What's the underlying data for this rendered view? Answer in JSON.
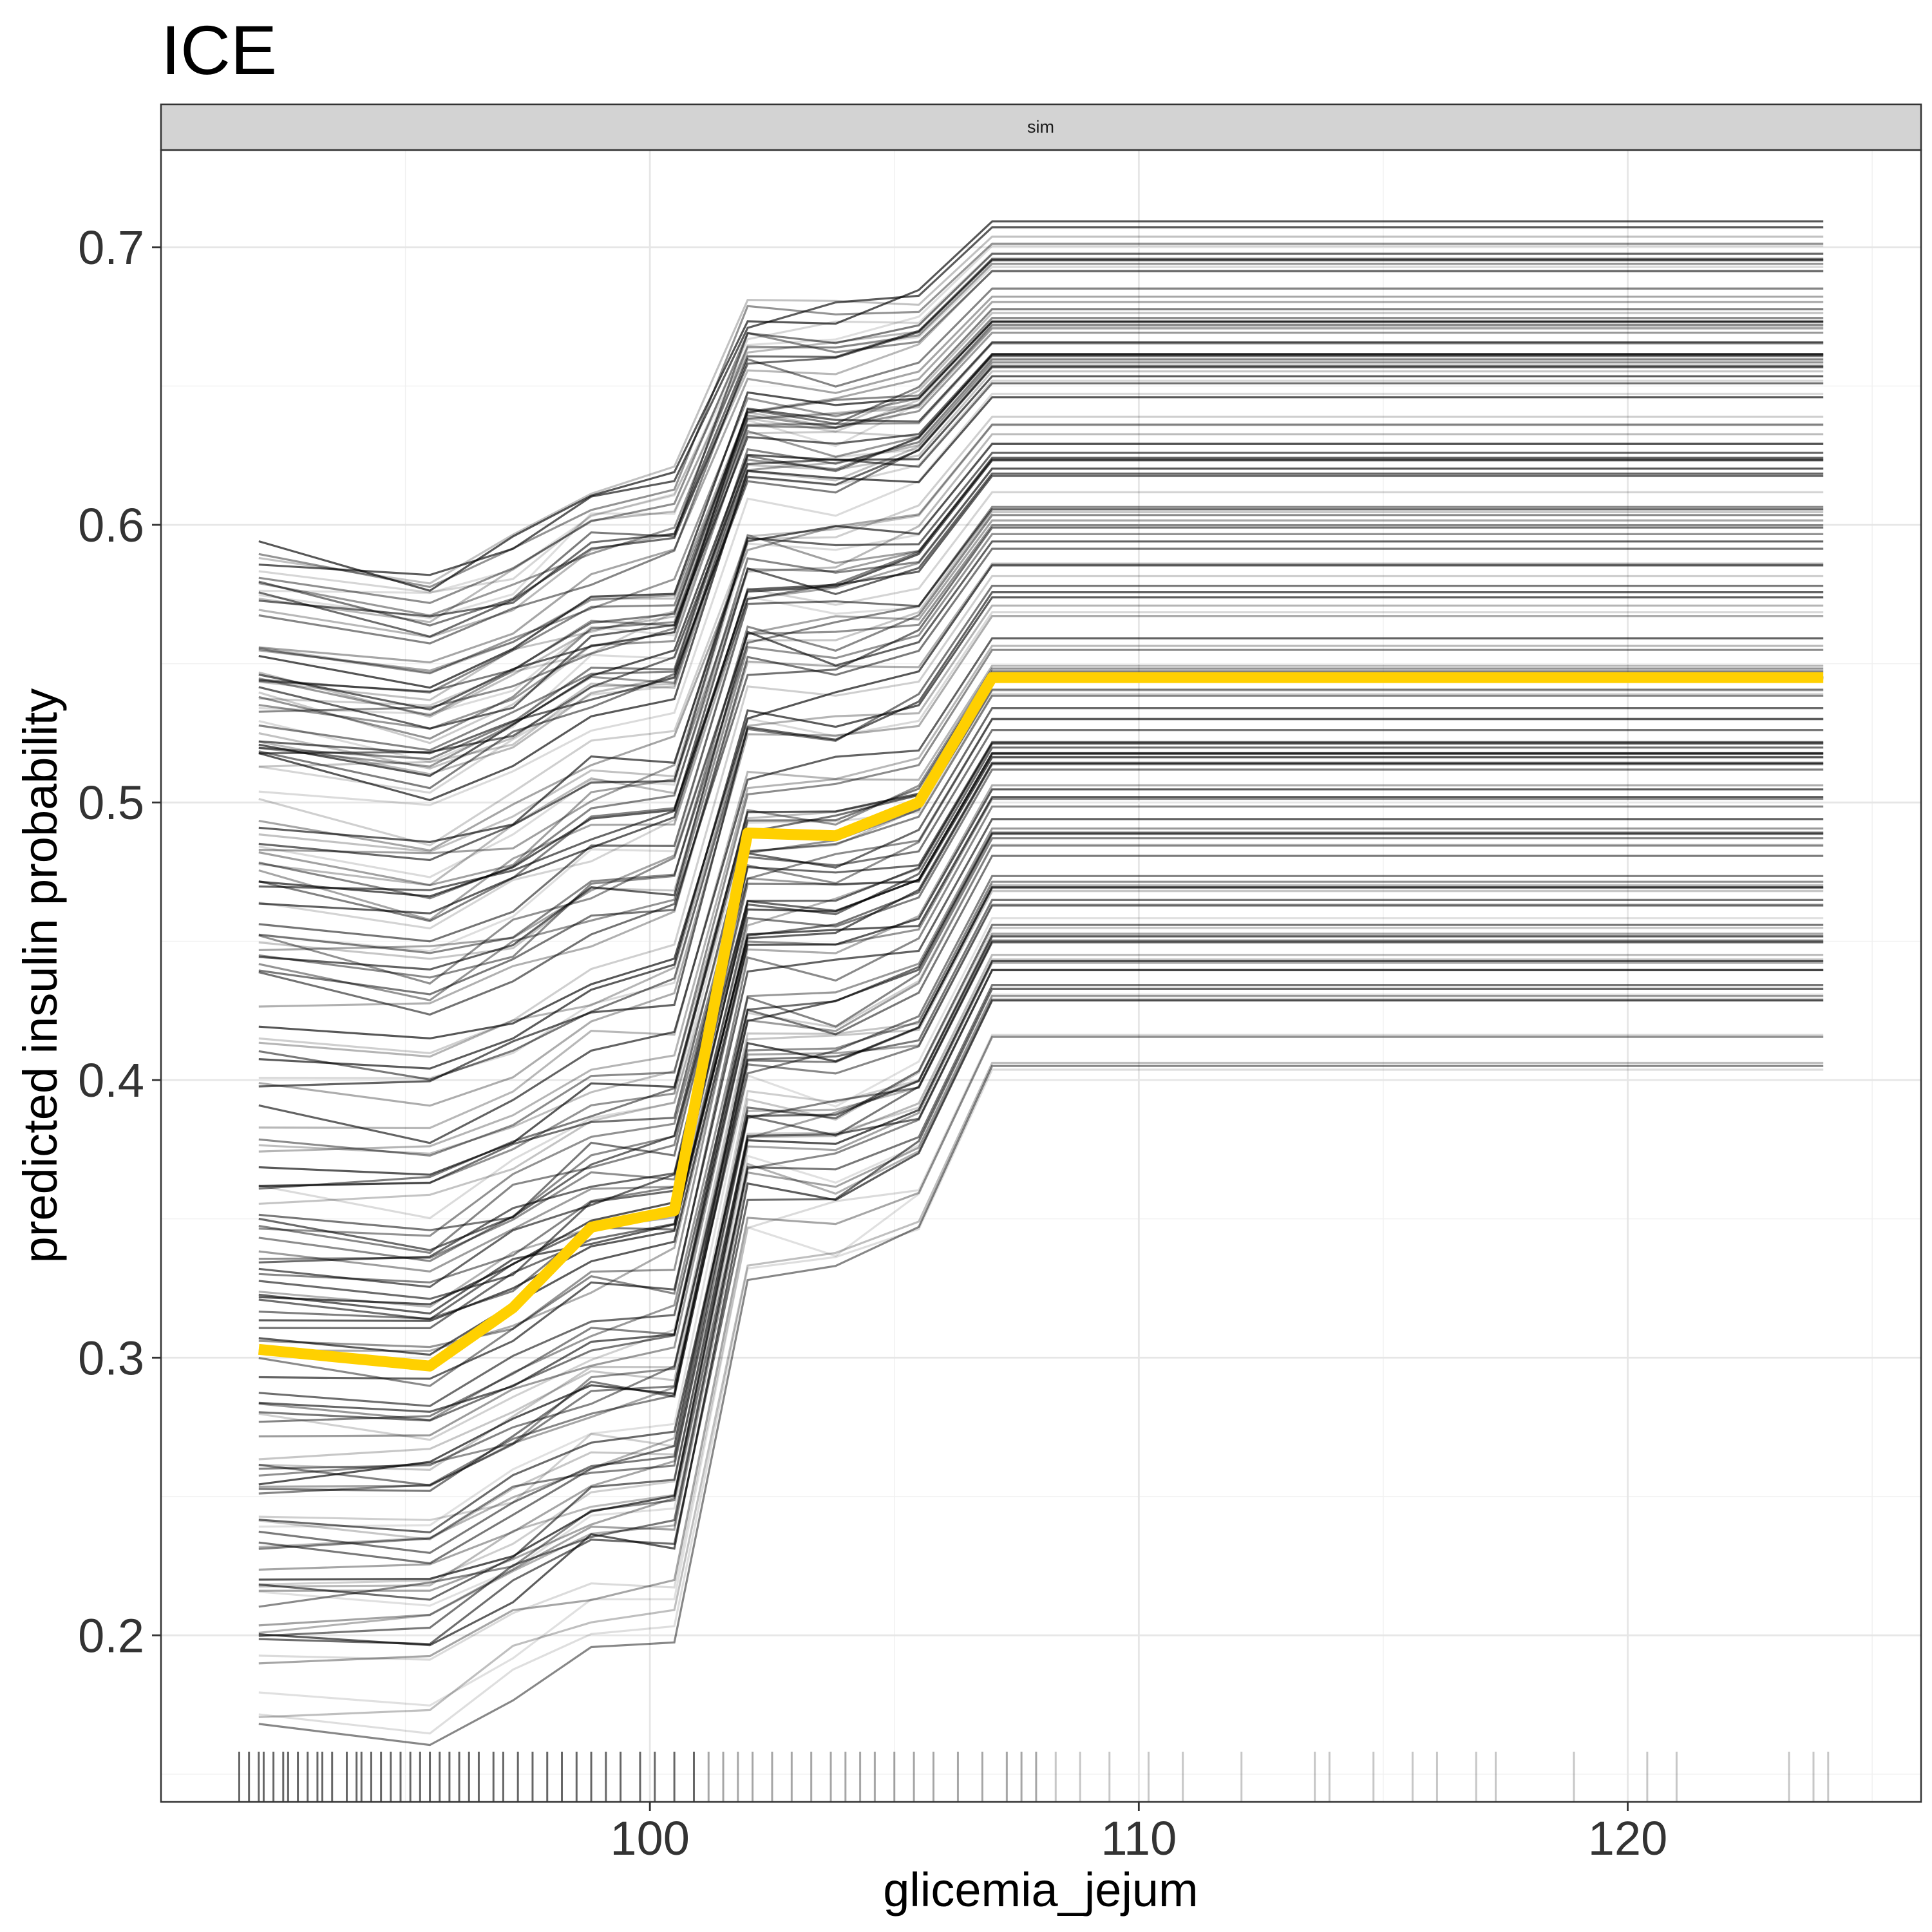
{
  "chart_data": {
    "type": "line",
    "title": "ICE",
    "facet_label": "sim",
    "xlabel": "glicemia_jejum",
    "ylabel": "predicted insulin probability",
    "xlim": [
      90,
      126
    ],
    "ylim": [
      0.14,
      0.735
    ],
    "x_ticks": [
      100,
      110,
      120
    ],
    "x_tick_labels": [
      "100",
      "110",
      "120"
    ],
    "y_ticks": [
      0.2,
      0.3,
      0.4,
      0.5,
      0.6,
      0.7
    ],
    "y_tick_labels": [
      "0.2",
      "0.3",
      "0.4",
      "0.5",
      "0.6",
      "0.7"
    ],
    "grid": true,
    "x": [
      92,
      95.5,
      97.2,
      98.8,
      100.5,
      102,
      103.8,
      105.5,
      107,
      124
    ],
    "average_curve": {
      "color": "#ffd000",
      "values": [
        0.303,
        0.297,
        0.318,
        0.347,
        0.353,
        0.489,
        0.488,
        0.5,
        0.545,
        0.545
      ]
    },
    "individual_curves": {
      "color": "#000000",
      "count": 160,
      "values_min": [
        0.163,
        0.163,
        0.18,
        0.193,
        0.197,
        0.33,
        0.33,
        0.344,
        0.402,
        0.402
      ],
      "values_max": [
        0.599,
        0.589,
        0.599,
        0.617,
        0.623,
        0.683,
        0.682,
        0.686,
        0.71,
        0.71
      ]
    },
    "rug": [
      91.6,
      91.8,
      92.0,
      92.1,
      92.3,
      92.5,
      92.6,
      92.8,
      93.0,
      93.2,
      93.3,
      93.5,
      93.8,
      94.0,
      94.1,
      94.3,
      94.5,
      94.7,
      94.9,
      95.1,
      95.3,
      95.5,
      95.7,
      95.9,
      96.1,
      96.3,
      96.5,
      96.8,
      97.0,
      97.3,
      97.6,
      97.9,
      98.2,
      98.5,
      98.8,
      99.1,
      99.4,
      99.8,
      100.1,
      100.5,
      100.9,
      101.2,
      101.5,
      101.8,
      102.1,
      102.5,
      102.9,
      103.3,
      103.7,
      104.0,
      104.3,
      104.6,
      105.0,
      105.4,
      105.8,
      106.3,
      106.8,
      107.3,
      107.6,
      107.9,
      108.3,
      108.8,
      109.4,
      110.2,
      110.9,
      112.1,
      113.6,
      113.9,
      114.8,
      115.6,
      116.1,
      116.9,
      117.3,
      118.9,
      120.4,
      121.0,
      123.3,
      123.8,
      124.1
    ]
  }
}
